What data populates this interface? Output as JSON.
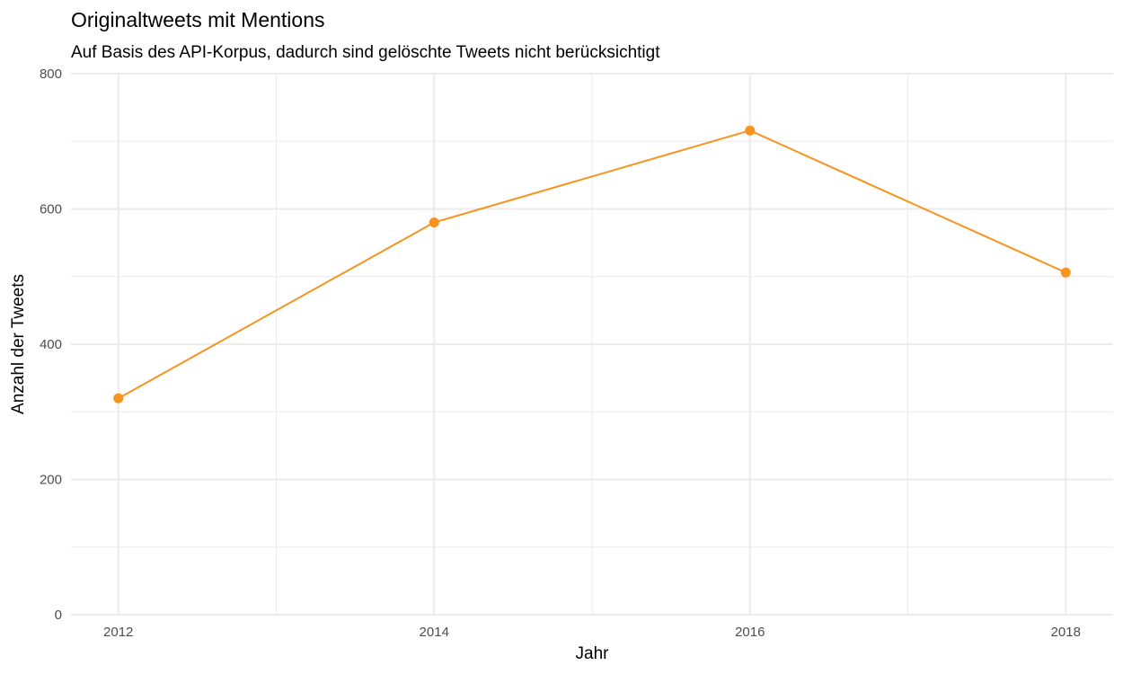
{
  "chart_data": {
    "type": "line",
    "title": "Originaltweets mit Mentions",
    "subtitle": "Auf Basis des API-Korpus, dadurch sind gelöschte Tweets nicht berücksichtigt",
    "xlabel": "Jahr",
    "ylabel": "Anzahl der Tweets",
    "x": [
      2012,
      2014,
      2016,
      2018
    ],
    "series": [
      {
        "values": [
          320,
          580,
          716,
          506
        ],
        "color": "#f7931e"
      }
    ],
    "xlim": [
      2011.7,
      2018.3
    ],
    "ylim": [
      0,
      800
    ],
    "x_ticks": [
      2012,
      2014,
      2016,
      2018
    ],
    "y_ticks": [
      0,
      200,
      400,
      600,
      800
    ],
    "grid": true,
    "legend": "none"
  }
}
